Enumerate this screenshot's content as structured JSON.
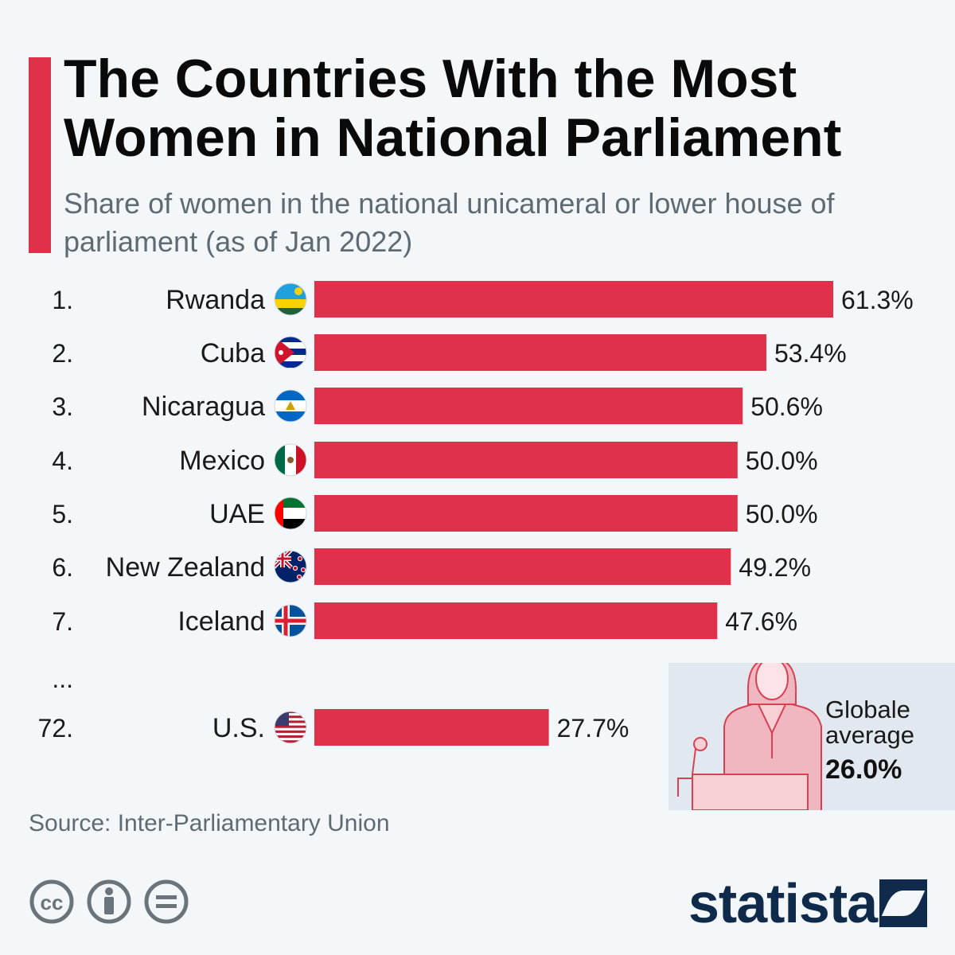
{
  "title": "The Countries With the Most Women in National Parliament",
  "subtitle": "Share of women in the national unicameral or lower house of parliament (as of Jan 2022)",
  "chart_data": {
    "type": "bar",
    "orientation": "horizontal",
    "ranks": [
      "1.",
      "2.",
      "3.",
      "4.",
      "5.",
      "6.",
      "7.",
      "...",
      "72."
    ],
    "categories": [
      "Rwanda",
      "Cuba",
      "Nicaragua",
      "Mexico",
      "UAE",
      "New Zealand",
      "Iceland",
      "",
      "U.S."
    ],
    "values": [
      61.3,
      53.4,
      50.6,
      50.0,
      50.0,
      49.2,
      47.6,
      null,
      27.7
    ],
    "value_labels": [
      "61.3%",
      "53.4%",
      "50.6%",
      "50.0%",
      "50.0%",
      "49.2%",
      "47.6%",
      "",
      "27.7%"
    ],
    "flags": [
      "rwanda-flag-icon",
      "cuba-flag-icon",
      "nicaragua-flag-icon",
      "mexico-flag-icon",
      "uae-flag-icon",
      "new-zealand-flag-icon",
      "iceland-flag-icon",
      "",
      "us-flag-icon"
    ],
    "xlim": [
      0,
      61.3
    ],
    "grid": false,
    "bar_color": "#e0314a"
  },
  "average": {
    "label": "Globale average",
    "value": 26.0,
    "value_label": "26.0%"
  },
  "source": "Source: Inter-Parliamentary Union",
  "brand": "statista",
  "colors": {
    "accent": "#e0314a",
    "brand": "#0f2a4a",
    "text_muted": "#5f6a72",
    "panel": "#e2e8ef"
  },
  "icons": [
    "cc-icon",
    "attribution-icon",
    "no-derivatives-icon",
    "speaker-woman-icon",
    "statista-logo-icon"
  ]
}
